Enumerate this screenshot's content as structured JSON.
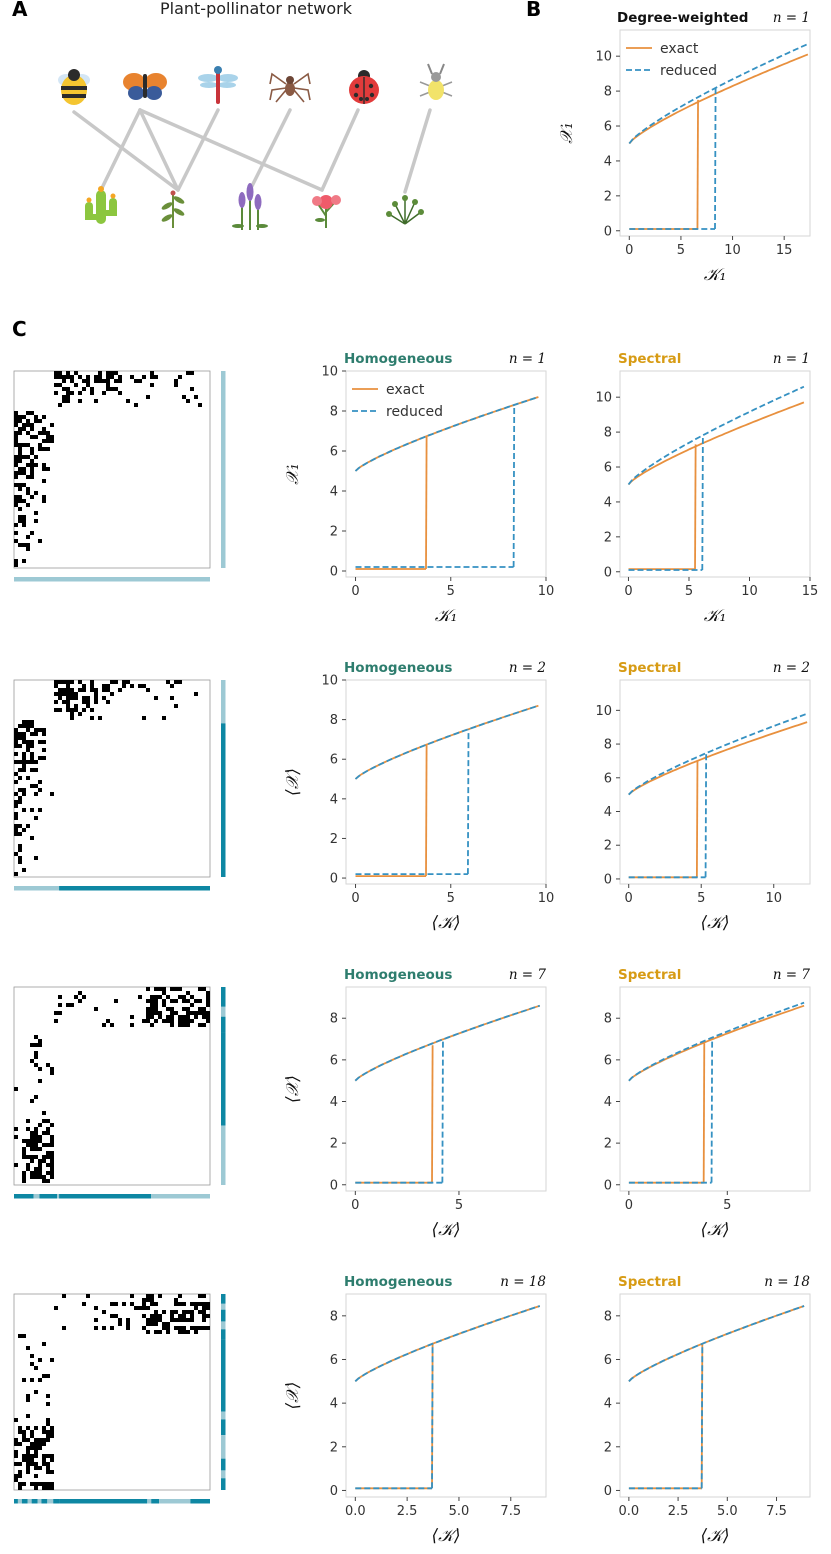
{
  "panel_labels": {
    "a": "A",
    "b": "B",
    "c": "C"
  },
  "network": {
    "title": "Plant-pollinator network",
    "pollinators": [
      "bee-icon",
      "butterfly-icon",
      "dragonfly-icon",
      "spider-icon",
      "ladybug-icon",
      "beetle-icon"
    ],
    "plants": [
      "cactus-icon",
      "herb-icon",
      "lavender-icon",
      "flower-icon",
      "shrub-icon"
    ],
    "edges": [
      [
        0,
        1
      ],
      [
        1,
        0
      ],
      [
        1,
        1
      ],
      [
        1,
        3
      ],
      [
        2,
        1
      ],
      [
        3,
        2
      ],
      [
        4,
        3
      ],
      [
        5,
        4
      ]
    ]
  },
  "legend": {
    "exact": "exact",
    "reduced": "reduced"
  },
  "colors": {
    "exact": "#e8903e",
    "reduced": "#3591c2",
    "homogeneous": "#2e7d6e",
    "spectral": "#d79b14",
    "block_light": "#9dc9d4",
    "block_dark": "#0e87a3",
    "matrix_cell": "#000000"
  },
  "chart_data": [
    {
      "id": "B",
      "type": "line",
      "method": "Degree-weighted",
      "n_label": "n = 1",
      "xlabel": "𝒦₁",
      "ylabel": "𝒳₁",
      "xlim": [
        -0.9,
        17.5
      ],
      "ylim": [
        -0.3,
        11.5
      ],
      "xticks": [
        0,
        5,
        10,
        15
      ],
      "yticks": [
        0,
        2,
        4,
        6,
        8,
        10
      ],
      "xtick_labels": [
        "0",
        "5",
        "10",
        "15"
      ],
      "exact_upper": {
        "x0": 0,
        "x1": 17.3,
        "y0": 5.0,
        "y1": 10.1,
        "jump_x": 6.6,
        "jump_y": 7.5
      },
      "reduced_upper": {
        "x0": 0,
        "x1": 17.3,
        "y0": 5.0,
        "y1": 10.7,
        "jump_x": 8.3,
        "jump_y": 8.3
      },
      "exact_lower_y": 0.1,
      "reduced_lower_y": 0.1,
      "legend": true
    },
    {
      "id": "C1H",
      "type": "line",
      "method": "Homogeneous",
      "n_label": "n = 1",
      "xlabel": "𝒦₁",
      "ylabel": "𝒳₁",
      "xlim": [
        -0.5,
        10
      ],
      "ylim": [
        -0.3,
        10
      ],
      "xticks": [
        0,
        5,
        10
      ],
      "yticks": [
        0,
        2,
        4,
        6,
        8,
        10
      ],
      "xtick_labels": [
        "0",
        "5",
        "10"
      ],
      "exact_upper": {
        "x0": 0,
        "x1": 9.6,
        "y0": 5.0,
        "y1": 8.7,
        "jump_x": 3.7,
        "jump_y": 6.7
      },
      "reduced_upper": {
        "x0": 0,
        "x1": 9.6,
        "y0": 5.0,
        "y1": 8.7,
        "jump_x": 8.3,
        "jump_y": 8.3
      },
      "exact_lower_y": 0.1,
      "reduced_lower_y": 0.2,
      "legend": true
    },
    {
      "id": "C1S",
      "type": "line",
      "method": "Spectral",
      "n_label": "n = 1",
      "xlabel": "𝒦₁",
      "ylabel": "",
      "xlim": [
        -0.7,
        15
      ],
      "ylim": [
        -0.3,
        11.5
      ],
      "xticks": [
        0,
        5,
        10,
        15
      ],
      "yticks": [
        0,
        2,
        4,
        6,
        8,
        10
      ],
      "xtick_labels": [
        "0",
        "5",
        "10",
        "15"
      ],
      "exact_upper": {
        "x0": 0,
        "x1": 14.5,
        "y0": 5.0,
        "y1": 9.7,
        "jump_x": 5.5,
        "jump_y": 7.3
      },
      "reduced_upper": {
        "x0": 0,
        "x1": 14.5,
        "y0": 5.0,
        "y1": 10.6,
        "jump_x": 6.1,
        "jump_y": 7.8
      },
      "exact_lower_y": 0.15,
      "reduced_lower_y": 0.1,
      "legend": false
    },
    {
      "id": "C2H",
      "type": "line",
      "method": "Homogeneous",
      "n_label": "n = 2",
      "xlabel": "⟨𝒦⟩",
      "ylabel": "⟨𝒳⟩",
      "xlim": [
        -0.5,
        10
      ],
      "ylim": [
        -0.3,
        10
      ],
      "xticks": [
        0,
        5,
        10
      ],
      "yticks": [
        0,
        2,
        4,
        6,
        8,
        10
      ],
      "xtick_labels": [
        "0",
        "5",
        "10"
      ],
      "exact_upper": {
        "x0": 0,
        "x1": 9.6,
        "y0": 5.0,
        "y1": 8.7,
        "jump_x": 3.7,
        "jump_y": 6.7
      },
      "reduced_upper": {
        "x0": 0,
        "x1": 9.6,
        "y0": 5.0,
        "y1": 8.7,
        "jump_x": 5.9,
        "jump_y": 7.5
      },
      "exact_lower_y": 0.1,
      "reduced_lower_y": 0.2,
      "legend": false
    },
    {
      "id": "C2S",
      "type": "line",
      "method": "Spectral",
      "n_label": "n = 2",
      "xlabel": "⟨𝒦⟩",
      "ylabel": "",
      "xlim": [
        -0.6,
        12.5
      ],
      "ylim": [
        -0.3,
        11.8
      ],
      "xticks": [
        0,
        5,
        10
      ],
      "yticks": [
        0,
        2,
        4,
        6,
        8,
        10
      ],
      "xtick_labels": [
        "0",
        "5",
        "10"
      ],
      "exact_upper": {
        "x0": 0,
        "x1": 12.3,
        "y0": 5.0,
        "y1": 9.3,
        "jump_x": 4.7,
        "jump_y": 7.0
      },
      "reduced_upper": {
        "x0": 0,
        "x1": 12.3,
        "y0": 5.0,
        "y1": 9.8,
        "jump_x": 5.3,
        "jump_y": 7.5
      },
      "exact_lower_y": 0.1,
      "reduced_lower_y": 0.1,
      "legend": false
    },
    {
      "id": "C3H",
      "type": "line",
      "method": "Homogeneous",
      "n_label": "n = 7",
      "xlabel": "⟨𝒦⟩",
      "ylabel": "⟨𝒳⟩",
      "xlim": [
        -0.45,
        9.2
      ],
      "ylim": [
        -0.3,
        9.5
      ],
      "xticks": [
        0,
        5
      ],
      "yticks": [
        0,
        2,
        4,
        6,
        8
      ],
      "xtick_labels": [
        "0",
        "5"
      ],
      "exact_upper": {
        "x0": 0,
        "x1": 8.9,
        "y0": 5.0,
        "y1": 8.6,
        "jump_x": 3.7,
        "jump_y": 6.7
      },
      "reduced_upper": {
        "x0": 0,
        "x1": 8.9,
        "y0": 5.0,
        "y1": 8.6,
        "jump_x": 4.2,
        "jump_y": 7.0
      },
      "exact_lower_y": 0.1,
      "reduced_lower_y": 0.1,
      "legend": false
    },
    {
      "id": "C3S",
      "type": "line",
      "method": "Spectral",
      "n_label": "n = 7",
      "xlabel": "⟨𝒦⟩",
      "ylabel": "",
      "xlim": [
        -0.45,
        9.2
      ],
      "ylim": [
        -0.3,
        9.5
      ],
      "xticks": [
        0,
        5
      ],
      "yticks": [
        0,
        2,
        4,
        6,
        8
      ],
      "xtick_labels": [
        "0",
        "5"
      ],
      "exact_upper": {
        "x0": 0,
        "x1": 8.9,
        "y0": 5.0,
        "y1": 8.6,
        "jump_x": 3.8,
        "jump_y": 6.8
      },
      "reduced_upper": {
        "x0": 0,
        "x1": 8.9,
        "y0": 5.0,
        "y1": 8.75,
        "jump_x": 4.2,
        "jump_y": 7.0
      },
      "exact_lower_y": 0.1,
      "reduced_lower_y": 0.1,
      "legend": false
    },
    {
      "id": "C4H",
      "type": "line",
      "method": "Homogeneous",
      "n_label": "n = 18",
      "xlabel": "⟨𝒦⟩",
      "ylabel": "⟨𝒳⟩",
      "xlim": [
        -0.45,
        9.2
      ],
      "ylim": [
        -0.3,
        9.0
      ],
      "xticks": [
        0,
        2.5,
        5,
        7.5
      ],
      "yticks": [
        0,
        2,
        4,
        6,
        8
      ],
      "xtick_labels": [
        "0.0",
        "2.5",
        "5.0",
        "7.5"
      ],
      "exact_upper": {
        "x0": 0,
        "x1": 8.9,
        "y0": 5.0,
        "y1": 8.45,
        "jump_x": 3.7,
        "jump_y": 6.7
      },
      "reduced_upper": {
        "x0": 0,
        "x1": 8.9,
        "y0": 5.0,
        "y1": 8.45,
        "jump_x": 3.7,
        "jump_y": 6.7
      },
      "exact_lower_y": 0.1,
      "reduced_lower_y": 0.1,
      "legend": false
    },
    {
      "id": "C4S",
      "type": "line",
      "method": "Spectral",
      "n_label": "n = 18",
      "xlabel": "⟨𝒦⟩",
      "ylabel": "",
      "xlim": [
        -0.45,
        9.2
      ],
      "ylim": [
        -0.3,
        9.0
      ],
      "xticks": [
        0,
        2.5,
        5,
        7.5
      ],
      "yticks": [
        0,
        2,
        4,
        6,
        8
      ],
      "xtick_labels": [
        "0.0",
        "2.5",
        "5.0",
        "7.5"
      ],
      "exact_upper": {
        "x0": 0,
        "x1": 8.9,
        "y0": 5.0,
        "y1": 8.45,
        "jump_x": 3.7,
        "jump_y": 6.7
      },
      "reduced_upper": {
        "x0": 0,
        "x1": 8.9,
        "y0": 5.0,
        "y1": 8.45,
        "jump_x": 3.7,
        "jump_y": 6.7
      },
      "exact_lower_y": 0.1,
      "reduced_lower_y": 0.1,
      "legend": false
    }
  ],
  "matrices": [
    {
      "id": "M1",
      "blocks_bottom": [
        [
          0,
          1,
          "light"
        ]
      ],
      "blocks_right": [
        [
          0,
          1,
          "light"
        ]
      ],
      "layout": "A"
    },
    {
      "id": "M2",
      "blocks_bottom": [
        [
          0,
          0.23,
          "light"
        ],
        [
          0.23,
          1,
          "dark"
        ]
      ],
      "blocks_right": [
        [
          0,
          0.22,
          "light"
        ],
        [
          0.22,
          1,
          "dark"
        ]
      ],
      "layout": "A"
    },
    {
      "id": "M3",
      "blocks_bottom": [
        [
          0,
          0.1,
          "dark"
        ],
        [
          0.1,
          0.13,
          "light"
        ],
        [
          0.13,
          0.22,
          "dark"
        ],
        [
          0.22,
          0.23,
          "light"
        ],
        [
          0.23,
          0.7,
          "dark"
        ],
        [
          0.7,
          1,
          "light"
        ]
      ],
      "blocks_right": [
        [
          0,
          0.1,
          "dark"
        ],
        [
          0.1,
          0.15,
          "light"
        ],
        [
          0.15,
          0.23,
          "dark"
        ],
        [
          0.23,
          0.7,
          "dark"
        ],
        [
          0.7,
          1,
          "light"
        ]
      ],
      "layout": "B"
    },
    {
      "id": "M4",
      "blocks_bottom": [
        [
          0,
          0.02,
          "dark"
        ],
        [
          0.02,
          0.04,
          "light"
        ],
        [
          0.04,
          0.07,
          "dark"
        ],
        [
          0.07,
          0.09,
          "light"
        ],
        [
          0.09,
          0.12,
          "dark"
        ],
        [
          0.12,
          0.14,
          "light"
        ],
        [
          0.14,
          0.17,
          "dark"
        ],
        [
          0.17,
          0.2,
          "light"
        ],
        [
          0.2,
          0.23,
          "dark"
        ],
        [
          0.23,
          0.68,
          "dark"
        ],
        [
          0.68,
          0.7,
          "light"
        ],
        [
          0.7,
          0.74,
          "dark"
        ],
        [
          0.74,
          0.9,
          "light"
        ],
        [
          0.9,
          1,
          "dark"
        ]
      ],
      "blocks_right": [
        [
          0,
          0.05,
          "dark"
        ],
        [
          0.05,
          0.08,
          "light"
        ],
        [
          0.08,
          0.14,
          "dark"
        ],
        [
          0.14,
          0.18,
          "light"
        ],
        [
          0.18,
          0.23,
          "dark"
        ],
        [
          0.23,
          0.6,
          "dark"
        ],
        [
          0.6,
          0.64,
          "light"
        ],
        [
          0.64,
          0.72,
          "dark"
        ],
        [
          0.72,
          0.84,
          "light"
        ],
        [
          0.84,
          0.9,
          "dark"
        ],
        [
          0.9,
          0.94,
          "light"
        ],
        [
          0.94,
          1,
          "dark"
        ]
      ],
      "layout": "C"
    }
  ]
}
